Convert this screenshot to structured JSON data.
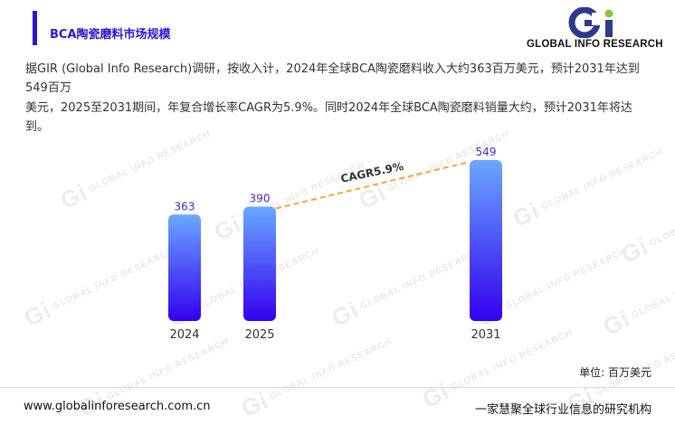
{
  "header": {
    "title": "BCA陶瓷磨料市场规模",
    "logo_text": "GLOBAL INFO RESEARCH",
    "logo_mark": "Gi"
  },
  "summary": {
    "line1": "据GIR (Global Info Research)调研，按收入计，2024年全球BCA陶瓷磨料收入大约363百万美元，预计2031年达到549百万",
    "line2": "美元，2025至2031期间，年复合增长率CAGR为5.9%。同时2024年全球BCA陶瓷磨料销量大约，预计2031年将达到。"
  },
  "chart_data": {
    "type": "bar",
    "categories": [
      "2024",
      "2025",
      "2031"
    ],
    "values": [
      363,
      390,
      549
    ],
    "unit_label": "单位: 百万美元",
    "annotation": "CAGR5.9%",
    "colors": {
      "bar_top": "#6aa8ff",
      "bar_bottom": "#3300ee",
      "value_label": "#3a2fc8",
      "cagr_line": "#f5a43a"
    }
  },
  "footer": {
    "url": "www.globalinforesearch.com.cn",
    "slogan": "一家慧聚全球行业信息的研究机构"
  },
  "watermark": "GLOBAL INFO RESEARCH"
}
